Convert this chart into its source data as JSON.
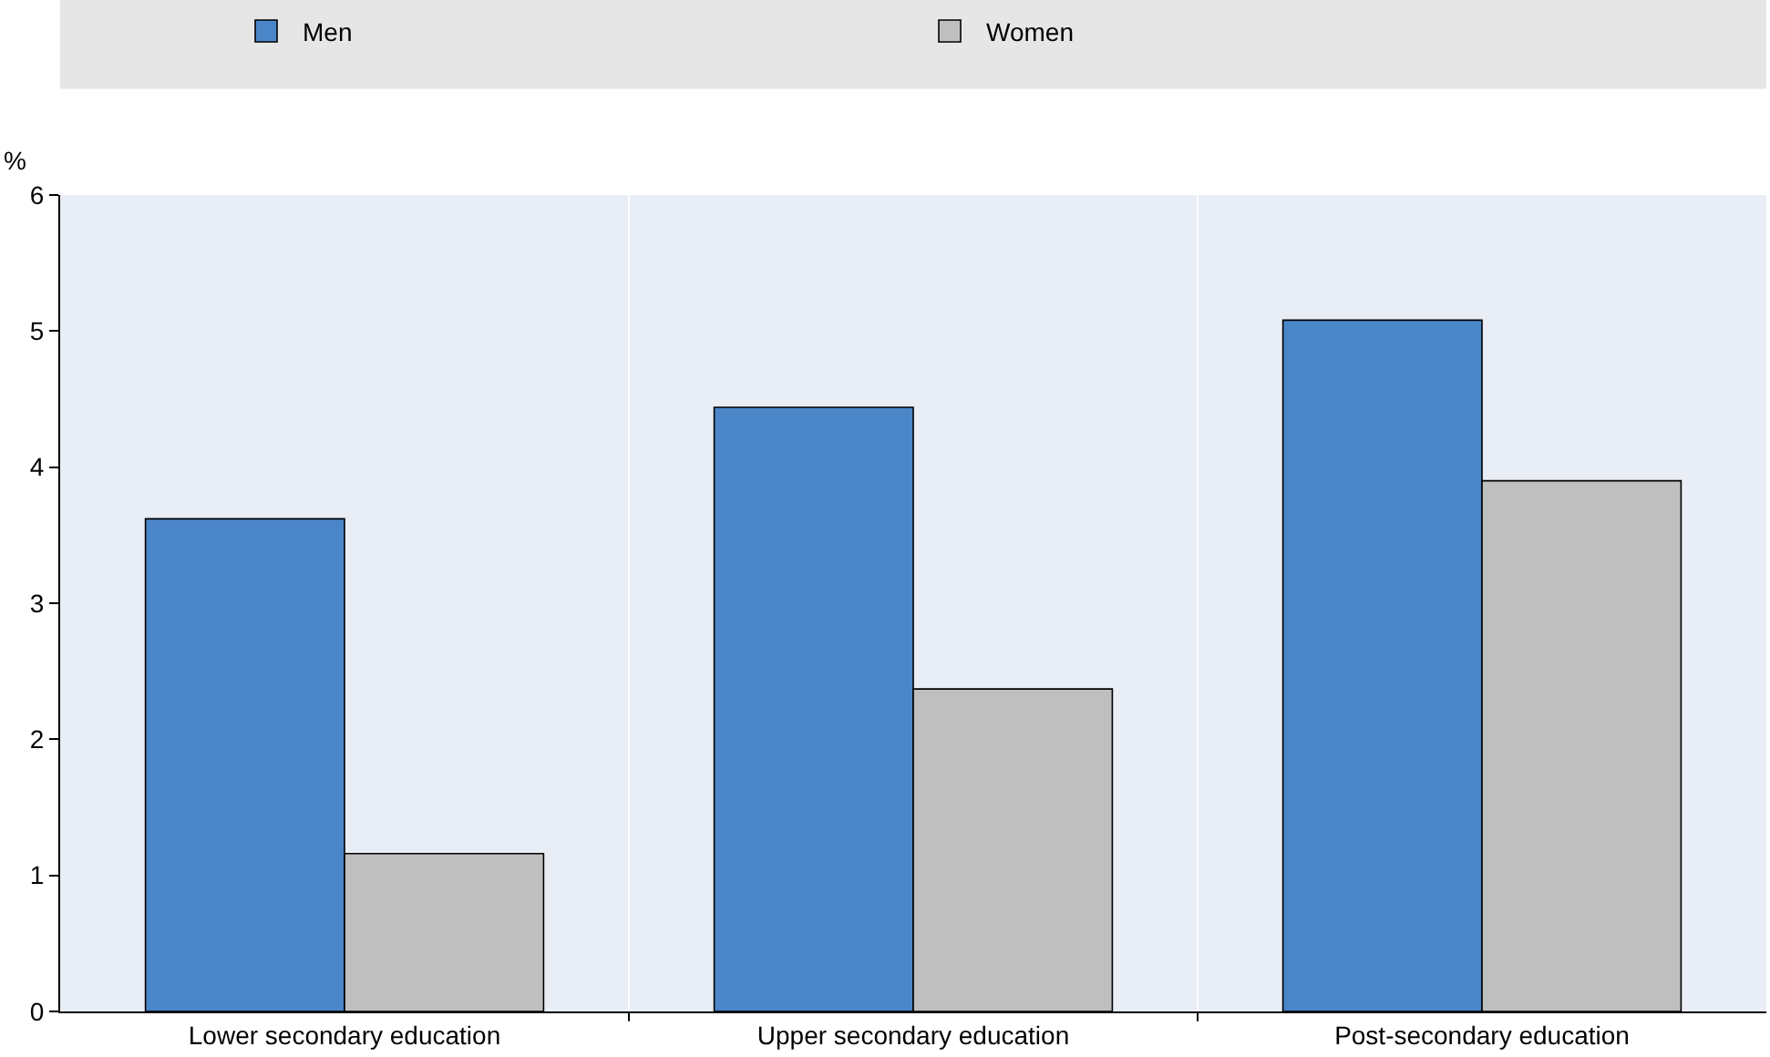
{
  "chart_data": {
    "type": "bar",
    "ylabel": "%",
    "categories": [
      "Lower secondary education",
      "Upper secondary education",
      "Post-secondary education"
    ],
    "series": [
      {
        "name": "Men",
        "color": "#4a86c8",
        "values": [
          3.62,
          4.44,
          5.08
        ]
      },
      {
        "name": "Women",
        "color": "#bfbfbf",
        "values": [
          1.16,
          2.37,
          3.9
        ]
      }
    ],
    "ylim": [
      0,
      6
    ],
    "yticks": [
      0,
      1,
      2,
      3,
      4,
      5,
      6
    ],
    "grid": "x",
    "legend": "top"
  }
}
